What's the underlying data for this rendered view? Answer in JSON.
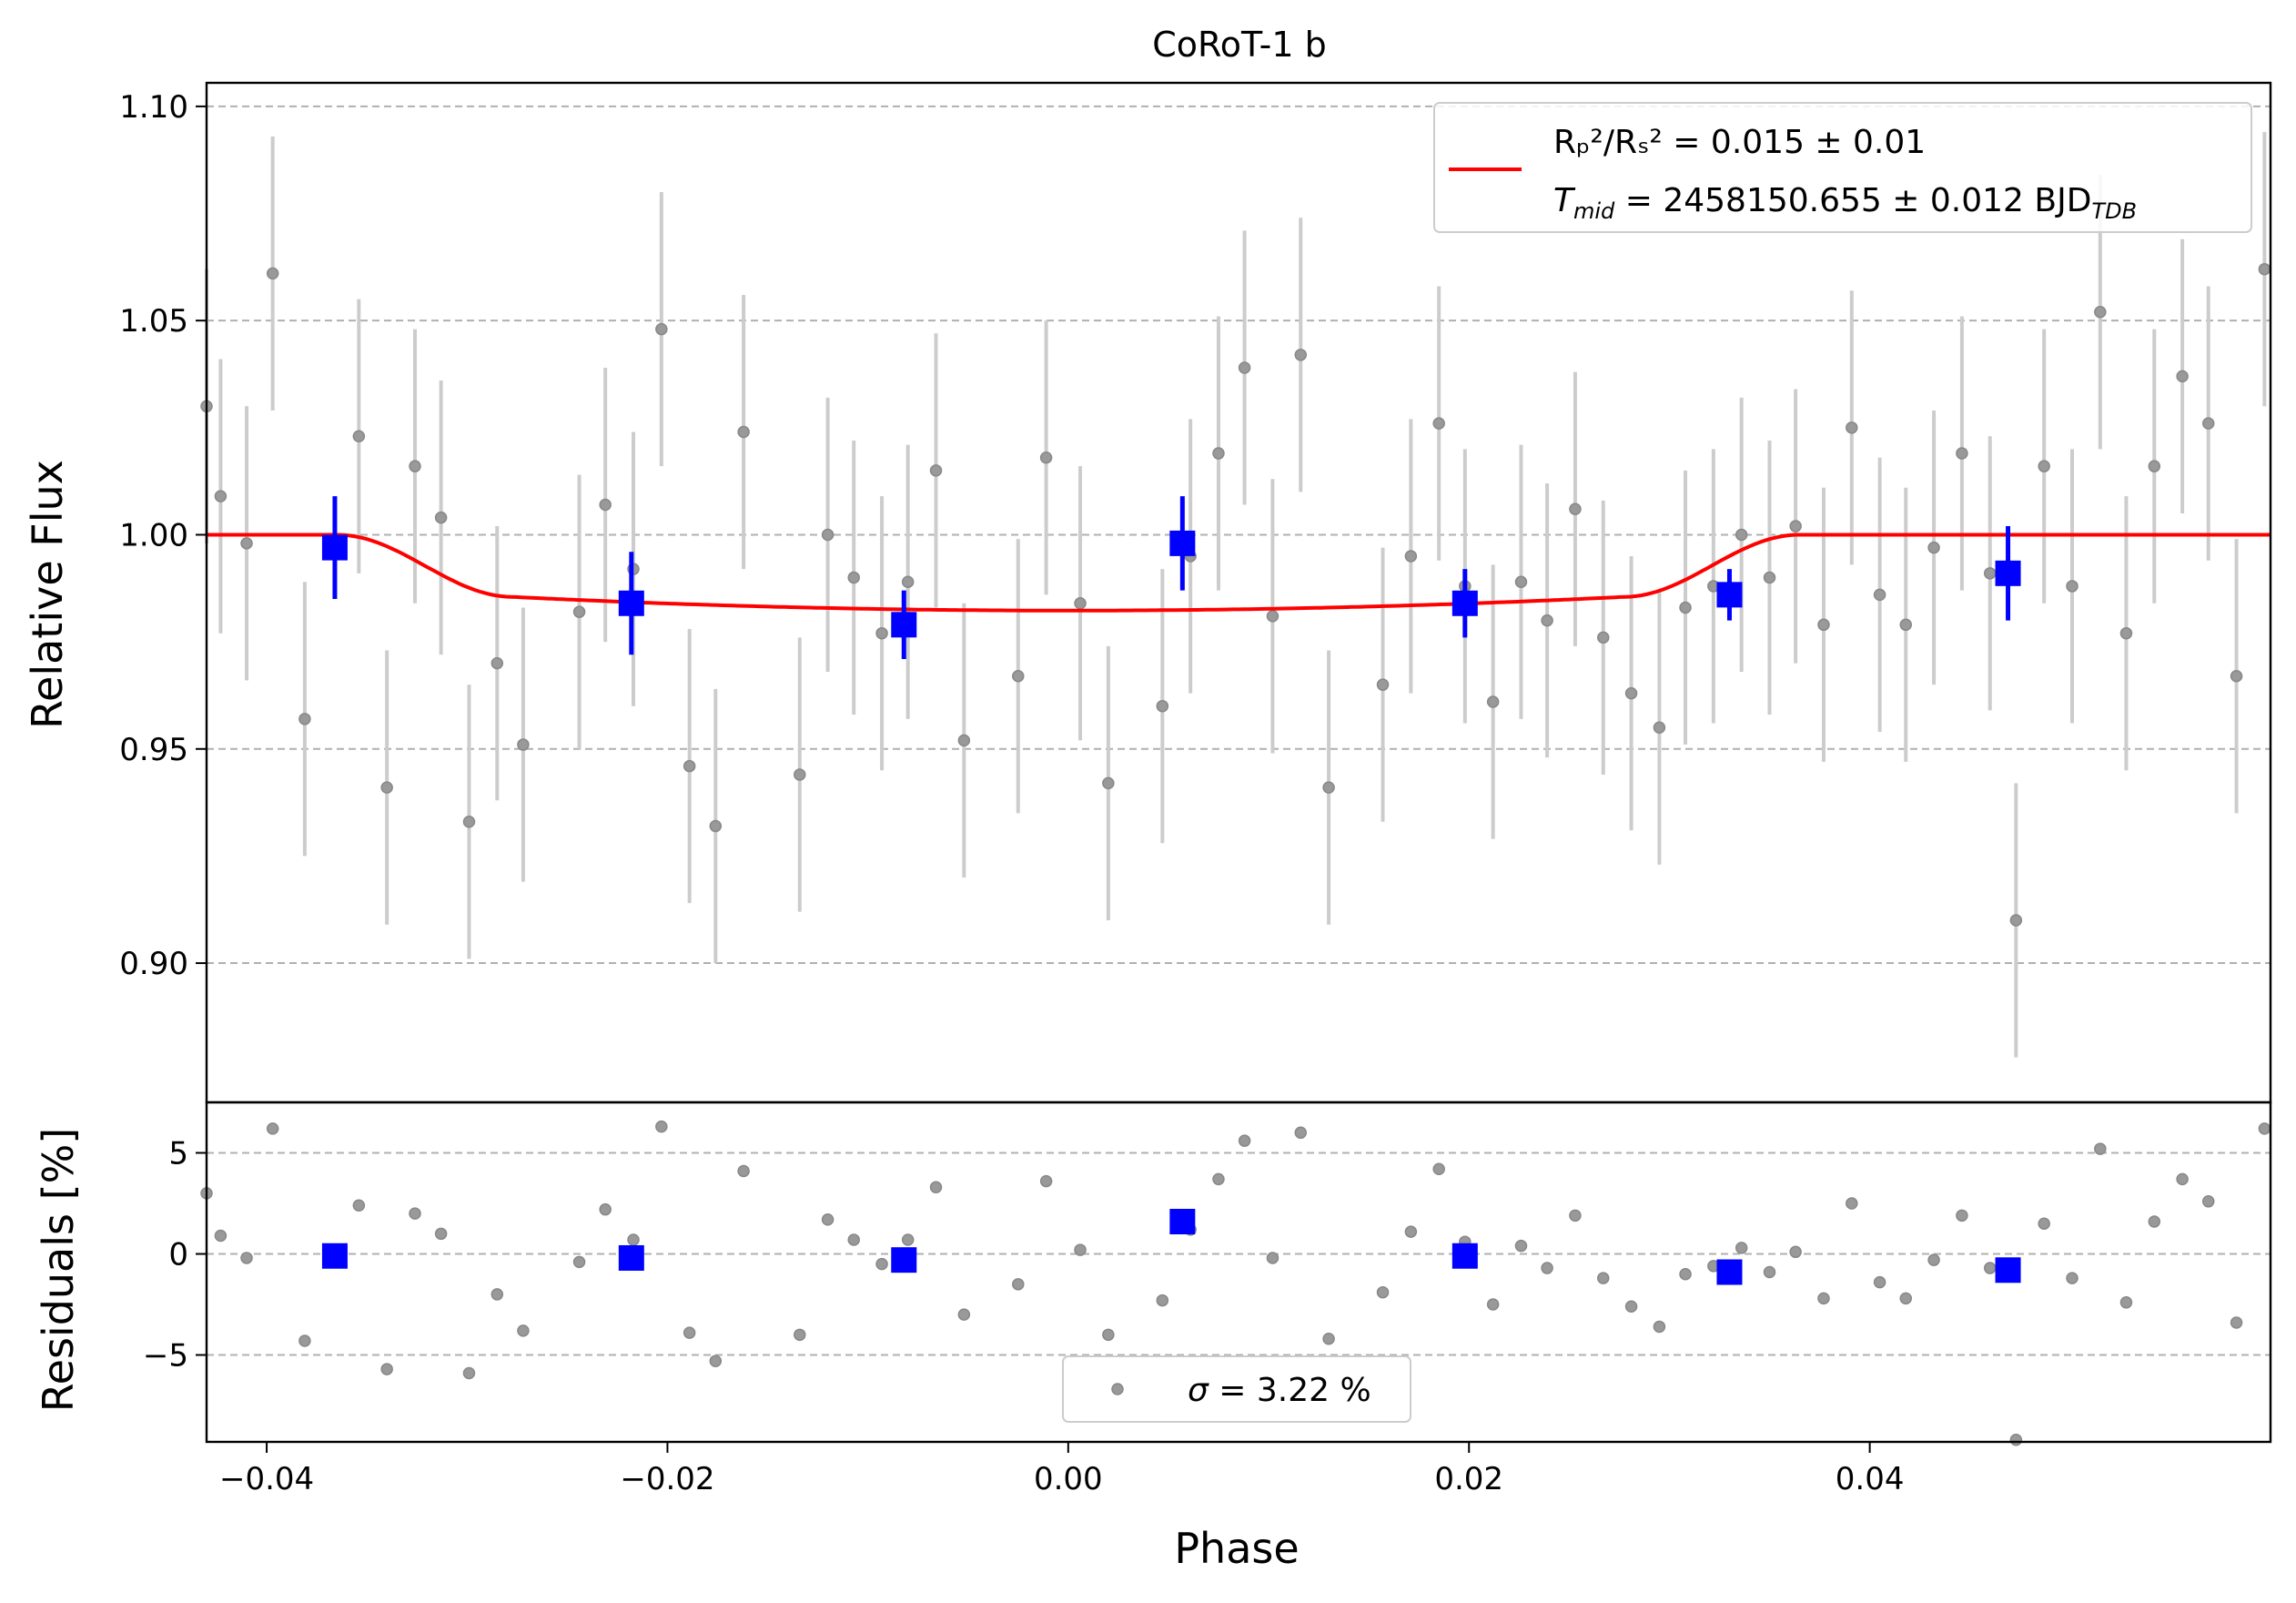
{
  "chart_data": {
    "type": "scatter",
    "title": "CoRoT-1 b",
    "xlabel": "Phase",
    "ylabel_top": "Relative Flux",
    "ylabel_bottom": "Residuals [%]",
    "xlim": [
      -0.043,
      0.06
    ],
    "ylim_top": [
      0.8675,
      1.1055
    ],
    "ylim_bottom": [
      -9.3,
      7.5
    ],
    "grid": "horizontal dashed",
    "xticks": [
      -0.04,
      -0.02,
      0.0,
      0.02,
      0.04
    ],
    "xtick_labels": [
      "−0.04",
      "−0.02",
      "0.00",
      "0.02",
      "0.04"
    ],
    "yticks_top": [
      0.9,
      0.95,
      1.0,
      1.05,
      1.1
    ],
    "ytick_labels_top": [
      "0.90",
      "0.95",
      "1.00",
      "1.05",
      "1.10"
    ],
    "yticks_bottom": [
      -5,
      0,
      5
    ],
    "ytick_labels_bottom": [
      "−5",
      "0",
      "5"
    ],
    "legend_top": {
      "placement": "top-right",
      "line1": "Rₚ²/Rₛ² = 0.015 ± 0.01",
      "line2_main": "T",
      "line2_sub": "mid",
      "line2_text": " = 2458150.655 ± 0.012 BJD",
      "line2_sub2": "TDB"
    },
    "legend_bottom": {
      "placement": "lower-center",
      "label_sigma": "σ",
      "label_text": " = 3.22 %"
    },
    "model_transit": {
      "depth": 0.0177,
      "t_ingress_start": 0.0365,
      "t_full": 0.0277
    },
    "raw_points": [
      [
        -0.043,
        1.03,
        0.032
      ],
      [
        -0.0423,
        1.009,
        0.032
      ],
      [
        -0.041,
        0.998,
        0.032
      ],
      [
        -0.0397,
        1.061,
        0.032
      ],
      [
        -0.0381,
        0.957,
        0.032
      ],
      [
        -0.0354,
        1.023,
        0.032
      ],
      [
        -0.034,
        0.941,
        0.032
      ],
      [
        -0.0326,
        1.016,
        0.032
      ],
      [
        -0.0313,
        1.004,
        0.032
      ],
      [
        -0.0299,
        0.933,
        0.032
      ],
      [
        -0.0285,
        0.97,
        0.032
      ],
      [
        -0.0272,
        0.951,
        0.032
      ],
      [
        -0.0244,
        0.982,
        0.032
      ],
      [
        -0.0231,
        1.007,
        0.032
      ],
      [
        -0.0217,
        0.992,
        0.032
      ],
      [
        -0.0203,
        1.048,
        0.032
      ],
      [
        -0.0189,
        0.946,
        0.032
      ],
      [
        -0.0176,
        0.932,
        0.032
      ],
      [
        -0.0162,
        1.024,
        0.032
      ],
      [
        -0.0134,
        0.944,
        0.032
      ],
      [
        -0.012,
        1.0,
        0.032
      ],
      [
        -0.0107,
        0.99,
        0.032
      ],
      [
        -0.0093,
        0.977,
        0.032
      ],
      [
        -0.008,
        0.989,
        0.032
      ],
      [
        -0.0066,
        1.015,
        0.032
      ],
      [
        -0.0052,
        0.952,
        0.032
      ],
      [
        -0.0025,
        0.967,
        0.032
      ],
      [
        -0.0011,
        1.018,
        0.032
      ],
      [
        0.0006,
        0.984,
        0.032
      ],
      [
        0.002,
        0.942,
        0.032
      ],
      [
        0.0047,
        0.96,
        0.032
      ],
      [
        0.0061,
        0.995,
        0.032
      ],
      [
        0.0075,
        1.019,
        0.032
      ],
      [
        0.0088,
        1.039,
        0.032
      ],
      [
        0.0102,
        0.981,
        0.032
      ],
      [
        0.0116,
        1.042,
        0.032
      ],
      [
        0.013,
        0.941,
        0.032
      ],
      [
        0.0157,
        0.965,
        0.032
      ],
      [
        0.0171,
        0.995,
        0.032
      ],
      [
        0.0185,
        1.026,
        0.032
      ],
      [
        0.0198,
        0.988,
        0.032
      ],
      [
        0.0212,
        0.961,
        0.032
      ],
      [
        0.0226,
        0.989,
        0.032
      ],
      [
        0.0239,
        0.98,
        0.032
      ],
      [
        0.0253,
        1.006,
        0.032
      ],
      [
        0.0267,
        0.976,
        0.032
      ],
      [
        0.0281,
        0.963,
        0.032
      ],
      [
        0.0295,
        0.955,
        0.032
      ],
      [
        0.0308,
        0.983,
        0.032
      ],
      [
        0.0322,
        0.988,
        0.032
      ],
      [
        0.0336,
        1.0,
        0.032
      ],
      [
        0.035,
        0.99,
        0.032
      ],
      [
        0.0363,
        1.002,
        0.032
      ],
      [
        0.0377,
        0.979,
        0.032
      ],
      [
        0.0391,
        1.025,
        0.032
      ],
      [
        0.0405,
        0.986,
        0.032
      ],
      [
        0.0418,
        0.979,
        0.032
      ],
      [
        0.0432,
        0.997,
        0.032
      ],
      [
        0.0446,
        1.019,
        0.032
      ],
      [
        0.046,
        0.991,
        0.032
      ],
      [
        0.0473,
        0.91,
        0.032
      ],
      [
        0.0487,
        1.016,
        0.032
      ],
      [
        0.0501,
        0.988,
        0.032
      ],
      [
        0.0515,
        1.052,
        0.032
      ],
      [
        0.0528,
        0.977,
        0.032
      ],
      [
        0.0542,
        1.016,
        0.032
      ],
      [
        0.0556,
        1.037,
        0.032
      ],
      [
        0.0569,
        1.026,
        0.032
      ],
      [
        0.0583,
        0.967,
        0.032
      ],
      [
        0.0597,
        1.062,
        0.032
      ]
    ],
    "residual_points": [
      [
        -0.043,
        3.0
      ],
      [
        -0.0423,
        0.9
      ],
      [
        -0.041,
        -0.2
      ],
      [
        -0.0397,
        6.2
      ],
      [
        -0.0381,
        -4.3
      ],
      [
        -0.0354,
        2.4
      ],
      [
        -0.034,
        -5.7
      ],
      [
        -0.0326,
        2.0
      ],
      [
        -0.0313,
        1.0
      ],
      [
        -0.0299,
        -5.9
      ],
      [
        -0.0285,
        -2.0
      ],
      [
        -0.0272,
        -3.8
      ],
      [
        -0.0244,
        -0.4
      ],
      [
        -0.0231,
        2.2
      ],
      [
        -0.0217,
        0.7
      ],
      [
        -0.0203,
        6.3
      ],
      [
        -0.0189,
        -3.9
      ],
      [
        -0.0176,
        -5.3
      ],
      [
        -0.0162,
        4.1
      ],
      [
        -0.0134,
        -4.0
      ],
      [
        -0.012,
        1.7
      ],
      [
        -0.0107,
        0.7
      ],
      [
        -0.0093,
        -0.5
      ],
      [
        -0.008,
        0.7
      ],
      [
        -0.0066,
        3.3
      ],
      [
        -0.0052,
        -3.0
      ],
      [
        -0.0025,
        -1.5
      ],
      [
        -0.0011,
        3.6
      ],
      [
        0.0006,
        0.2
      ],
      [
        0.002,
        -4.0
      ],
      [
        0.0047,
        -2.3
      ],
      [
        0.0061,
        1.2
      ],
      [
        0.0075,
        3.7
      ],
      [
        0.0088,
        5.6
      ],
      [
        0.0102,
        -0.2
      ],
      [
        0.0116,
        6.0
      ],
      [
        0.013,
        -4.2
      ],
      [
        0.0157,
        -1.9
      ],
      [
        0.0171,
        1.1
      ],
      [
        0.0185,
        4.2
      ],
      [
        0.0198,
        0.6
      ],
      [
        0.0212,
        -2.5
      ],
      [
        0.0226,
        0.4
      ],
      [
        0.0239,
        -0.7
      ],
      [
        0.0253,
        1.9
      ],
      [
        0.0267,
        -1.2
      ],
      [
        0.0281,
        -2.6
      ],
      [
        0.0295,
        -3.6
      ],
      [
        0.0308,
        -1.0
      ],
      [
        0.0322,
        -0.6
      ],
      [
        0.0336,
        0.3
      ],
      [
        0.035,
        -0.9
      ],
      [
        0.0363,
        0.1
      ],
      [
        0.0377,
        -2.2
      ],
      [
        0.0391,
        2.5
      ],
      [
        0.0405,
        -1.4
      ],
      [
        0.0418,
        -2.2
      ],
      [
        0.0432,
        -0.3
      ],
      [
        0.0446,
        1.9
      ],
      [
        0.046,
        -0.7
      ],
      [
        0.0473,
        -9.2
      ],
      [
        0.0487,
        1.5
      ],
      [
        0.0501,
        -1.2
      ],
      [
        0.0515,
        5.2
      ],
      [
        0.0528,
        -2.4
      ],
      [
        0.0542,
        1.6
      ],
      [
        0.0556,
        3.7
      ],
      [
        0.0569,
        2.6
      ],
      [
        0.0583,
        -3.4
      ],
      [
        0.0597,
        6.2
      ]
    ],
    "binned_points": [
      [
        -0.0366,
        0.997,
        0.012,
        -0.1
      ],
      [
        -0.0218,
        0.984,
        0.012,
        -0.2
      ],
      [
        -0.0082,
        0.979,
        0.008,
        -0.3
      ],
      [
        0.0057,
        0.998,
        0.011,
        1.6
      ],
      [
        0.0198,
        0.984,
        0.008,
        -0.1
      ],
      [
        0.033,
        0.986,
        0.006,
        -0.9
      ],
      [
        0.0469,
        0.991,
        0.011,
        -0.8
      ]
    ],
    "colors": {
      "raw": "#999999",
      "raw_err": "#cccccc",
      "binned": "#0000ff",
      "model": "#ff0000",
      "grid": "#b0b0b0"
    }
  }
}
